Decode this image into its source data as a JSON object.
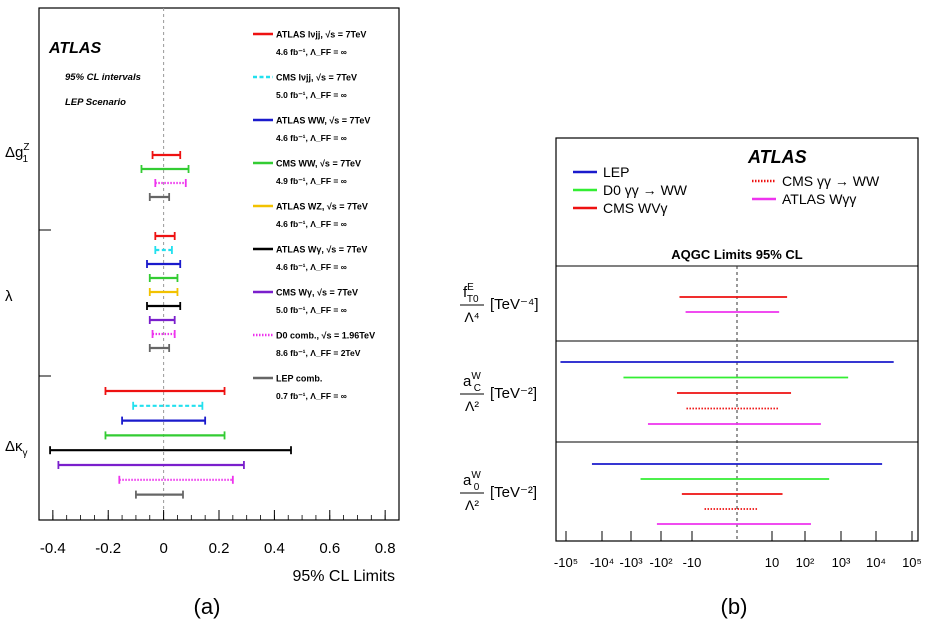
{
  "chart_data": [
    {
      "panel_label": "(a)",
      "type": "interval",
      "title": "ATLAS",
      "subtitle_lines": [
        "95% CL intervals",
        "LEP Scenario"
      ],
      "xlabel": "95% CL Limits",
      "xlim": [
        -0.45,
        0.85
      ],
      "xticks": [
        -0.4,
        -0.2,
        0,
        0.2,
        0.4,
        0.6,
        0.8
      ],
      "xtick_labels": [
        "-0.4",
        "-0.2",
        "0",
        "0.2",
        "0.4",
        "0.6",
        "0.8"
      ],
      "groups": [
        "Δg₁ᶻ",
        "λ",
        "Δκ_γ"
      ],
      "group_labels": [
        {
          "main": "Δg",
          "sup": "Z",
          "sub": "1"
        },
        {
          "main": "λ",
          "sup": "",
          "sub": ""
        },
        {
          "main": "Δκ",
          "sup": "",
          "sub": "γ"
        }
      ],
      "legend": [
        {
          "name": "ATLAS lνjj, √s = 7TeV",
          "line2": "4.6 fb⁻¹, Λ_FF = ∞",
          "color": "#ee1111",
          "style": "solid"
        },
        {
          "name": "CMS lνjj, √s = 7TeV",
          "line2": "5.0 fb⁻¹, Λ_FF = ∞",
          "color": "#22e0ee",
          "style": "dashed"
        },
        {
          "name": "ATLAS WW, √s = 7TeV",
          "line2": "4.6 fb⁻¹, Λ_FF = ∞",
          "color": "#1a1acc",
          "style": "solid"
        },
        {
          "name": "CMS WW, √s = 7TeV",
          "line2": "4.9 fb⁻¹, Λ_FF = ∞",
          "color": "#33cc33",
          "style": "solid"
        },
        {
          "name": "ATLAS WZ, √s = 7TeV",
          "line2": "4.6 fb⁻¹, Λ_FF = ∞",
          "color": "#f2c200",
          "style": "solid"
        },
        {
          "name": "ATLAS Wγ, √s = 7TeV",
          "line2": "4.6 fb⁻¹, Λ_FF = ∞",
          "color": "#000000",
          "style": "solid"
        },
        {
          "name": "CMS Wγ, √s = 7TeV",
          "line2": "5.0 fb⁻¹, Λ_FF = ∞",
          "color": "#7a1fcc",
          "style": "solid"
        },
        {
          "name": "D0 comb., √s = 1.96TeV",
          "line2": "8.6 fb⁻¹, Λ_FF = 2TeV",
          "color": "#ee33ee",
          "style": "dotted"
        },
        {
          "name": "LEP comb.",
          "line2": "0.7 fb⁻¹, Λ_FF = ∞",
          "color": "#666666",
          "style": "solid"
        }
      ],
      "intervals": [
        {
          "group": "Δg₁ᶻ",
          "series": "ATLAS WW, √s = 7TeV",
          "lo": -0.04,
          "hi": 0.06,
          "color": "#ee1111",
          "style": "solid"
        },
        {
          "group": "Δg₁ᶻ",
          "series": "CMS WW, √s = 7TeV",
          "lo": -0.08,
          "hi": 0.09,
          "color": "#33cc33",
          "style": "solid"
        },
        {
          "group": "Δg₁ᶻ",
          "series": "D0 comb., √s = 1.96TeV",
          "lo": -0.03,
          "hi": 0.08,
          "color": "#ee33ee",
          "style": "dotted"
        },
        {
          "group": "Δg₁ᶻ",
          "series": "LEP comb.",
          "lo": -0.05,
          "hi": 0.02,
          "color": "#666666",
          "style": "solid"
        },
        {
          "group": "λ",
          "series": "ATLAS lνjj, √s = 7TeV",
          "lo": -0.03,
          "hi": 0.04,
          "color": "#ee1111",
          "style": "solid"
        },
        {
          "group": "λ",
          "series": "CMS lνjj, √s = 7TeV",
          "lo": -0.03,
          "hi": 0.03,
          "color": "#22e0ee",
          "style": "dashed"
        },
        {
          "group": "λ",
          "series": "ATLAS WW, √s = 7TeV",
          "lo": -0.06,
          "hi": 0.06,
          "color": "#1a1acc",
          "style": "solid"
        },
        {
          "group": "λ",
          "series": "CMS WW, √s = 7TeV",
          "lo": -0.05,
          "hi": 0.05,
          "color": "#33cc33",
          "style": "solid"
        },
        {
          "group": "λ",
          "series": "ATLAS WZ, √s = 7TeV",
          "lo": -0.05,
          "hi": 0.05,
          "color": "#f2c200",
          "style": "solid"
        },
        {
          "group": "λ",
          "series": "ATLAS Wγ, √s = 7TeV",
          "lo": -0.06,
          "hi": 0.06,
          "color": "#000000",
          "style": "solid"
        },
        {
          "group": "λ",
          "series": "CMS Wγ, √s = 7TeV",
          "lo": -0.05,
          "hi": 0.04,
          "color": "#7a1fcc",
          "style": "solid"
        },
        {
          "group": "λ",
          "series": "D0 comb., √s = 1.96TeV",
          "lo": -0.04,
          "hi": 0.04,
          "color": "#ee33ee",
          "style": "dotted"
        },
        {
          "group": "λ",
          "series": "LEP comb.",
          "lo": -0.05,
          "hi": 0.02,
          "color": "#666666",
          "style": "solid"
        },
        {
          "group": "Δκ_γ",
          "series": "ATLAS lνjj, √s = 7TeV",
          "lo": -0.21,
          "hi": 0.22,
          "color": "#ee1111",
          "style": "solid"
        },
        {
          "group": "Δκ_γ",
          "series": "CMS lνjj, √s = 7TeV",
          "lo": -0.11,
          "hi": 0.14,
          "color": "#22e0ee",
          "style": "dashed"
        },
        {
          "group": "Δκ_γ",
          "series": "ATLAS WW, √s = 7TeV",
          "lo": -0.15,
          "hi": 0.15,
          "color": "#1a1acc",
          "style": "solid"
        },
        {
          "group": "Δκ_γ",
          "series": "CMS WW, √s = 7TeV",
          "lo": -0.21,
          "hi": 0.22,
          "color": "#33cc33",
          "style": "solid"
        },
        {
          "group": "Δκ_γ",
          "series": "ATLAS Wγ, √s = 7TeV",
          "lo": -0.41,
          "hi": 0.46,
          "color": "#000000",
          "style": "solid"
        },
        {
          "group": "Δκ_γ",
          "series": "CMS Wγ, √s = 7TeV",
          "lo": -0.38,
          "hi": 0.29,
          "color": "#7a1fcc",
          "style": "solid"
        },
        {
          "group": "Δκ_γ",
          "series": "D0 comb., √s = 1.96TeV",
          "lo": -0.16,
          "hi": 0.25,
          "color": "#ee33ee",
          "style": "dotted"
        },
        {
          "group": "Δκ_γ",
          "series": "LEP comb.",
          "lo": -0.1,
          "hi": 0.07,
          "color": "#666666",
          "style": "solid"
        }
      ]
    },
    {
      "panel_label": "(b)",
      "type": "interval",
      "title": "ATLAS",
      "subtitle": "AQGC Limits 95% CL",
      "xscale": "symlog",
      "xticks": [
        -100000,
        -10000,
        -1000,
        -100,
        -10,
        10,
        100,
        1000,
        10000,
        100000
      ],
      "xtick_labels": [
        "-10⁵",
        "-10⁴",
        "-10³",
        "-10²",
        "-10",
        "10",
        "10²",
        "10³",
        "10⁴",
        "10⁵"
      ],
      "legend": [
        {
          "name": "LEP",
          "color": "#1a1acc",
          "style": "solid"
        },
        {
          "name": "D0 γγ → WW",
          "color": "#33ee33",
          "style": "solid"
        },
        {
          "name": "CMS WVγ",
          "color": "#ee1111",
          "style": "solid"
        },
        {
          "name": "CMS γγ → WW",
          "color": "#ee1111",
          "style": "dotted"
        },
        {
          "name": "ATLAS Wγγ",
          "color": "#ee33ee",
          "style": "solid"
        }
      ],
      "rows": [
        {
          "label_main": "f",
          "label_sup": "E",
          "label_sub": "T0",
          "label_den": "Λ⁴",
          "label_unit": "[TeV⁻⁴]"
        },
        {
          "label_main": "a",
          "label_sup": "W",
          "label_sub": "C",
          "label_den": "Λ²",
          "label_unit": "[TeV⁻²]"
        },
        {
          "label_main": "a",
          "label_sup": "W",
          "label_sub": "0",
          "label_den": "Λ²",
          "label_unit": "[TeV⁻²]"
        }
      ],
      "intervals": [
        {
          "row": 0,
          "series": "CMS WVγ",
          "lo": -25,
          "hi": 27,
          "color": "#ee1111",
          "style": "solid"
        },
        {
          "row": 0,
          "series": "ATLAS Wγγ",
          "lo": -16,
          "hi": 16,
          "color": "#ee33ee",
          "style": "solid"
        },
        {
          "row": 1,
          "series": "LEP",
          "lo": -150000,
          "hi": 30000,
          "color": "#1a1acc",
          "style": "solid"
        },
        {
          "row": 1,
          "series": "D0 γγ → WW",
          "lo": -1500,
          "hi": 1500,
          "color": "#33ee33",
          "style": "solid"
        },
        {
          "row": 1,
          "series": "CMS WVγ",
          "lo": -30,
          "hi": 35,
          "color": "#ee1111",
          "style": "solid"
        },
        {
          "row": 1,
          "series": "CMS γγ → WW",
          "lo": -15,
          "hi": 15,
          "color": "#ee1111",
          "style": "dotted"
        },
        {
          "row": 1,
          "series": "ATLAS Wγγ",
          "lo": -250,
          "hi": 250,
          "color": "#ee33ee",
          "style": "solid"
        },
        {
          "row": 2,
          "series": "LEP",
          "lo": -15000,
          "hi": 14000,
          "color": "#1a1acc",
          "style": "solid"
        },
        {
          "row": 2,
          "series": "D0 γγ → WW",
          "lo": -430,
          "hi": 430,
          "color": "#33ee33",
          "style": "solid"
        },
        {
          "row": 2,
          "series": "CMS WVγ",
          "lo": -21,
          "hi": 20,
          "color": "#ee1111",
          "style": "solid"
        },
        {
          "row": 2,
          "series": "CMS γγ → WW",
          "lo": -4,
          "hi": 4,
          "color": "#ee1111",
          "style": "dotted"
        },
        {
          "row": 2,
          "series": "ATLAS Wγγ",
          "lo": -130,
          "hi": 130,
          "color": "#ee33ee",
          "style": "solid"
        }
      ]
    }
  ]
}
